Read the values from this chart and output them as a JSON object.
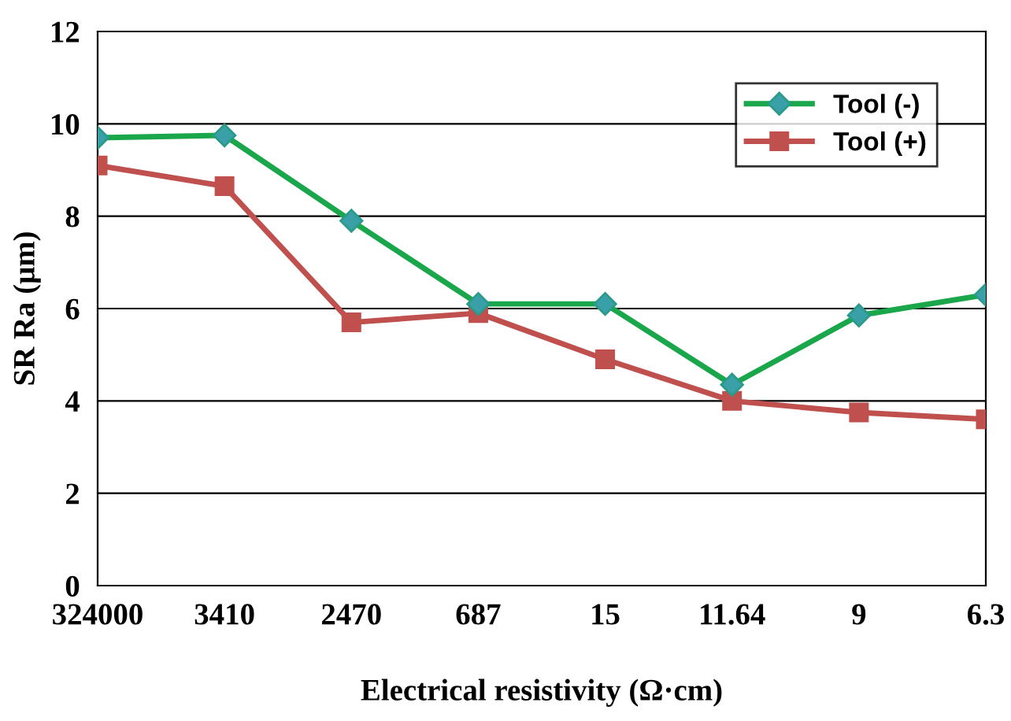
{
  "chart_data": {
    "type": "line",
    "xlabel": "Electrical resistivity (Ω·cm)",
    "ylabel": "SR Ra (μm)",
    "categories": [
      "324000",
      "3410",
      "2470",
      "687",
      "15",
      "11.64",
      "9",
      "6.3"
    ],
    "series": [
      {
        "name": "Tool (-)",
        "color": "#1aa64a",
        "marker": "diamond",
        "values": [
          9.7,
          9.75,
          7.9,
          6.1,
          6.1,
          4.35,
          5.85,
          6.3
        ]
      },
      {
        "name": "Tool (+)",
        "color": "#c0504d",
        "marker": "square",
        "values": [
          9.1,
          8.65,
          5.7,
          5.9,
          4.9,
          4.0,
          3.75,
          3.6
        ]
      }
    ],
    "ylim": [
      0,
      12
    ],
    "yticks": [
      0,
      2,
      4,
      6,
      8,
      10,
      12
    ],
    "grid": "y",
    "legend": "top right",
    "line_style": "solid"
  }
}
